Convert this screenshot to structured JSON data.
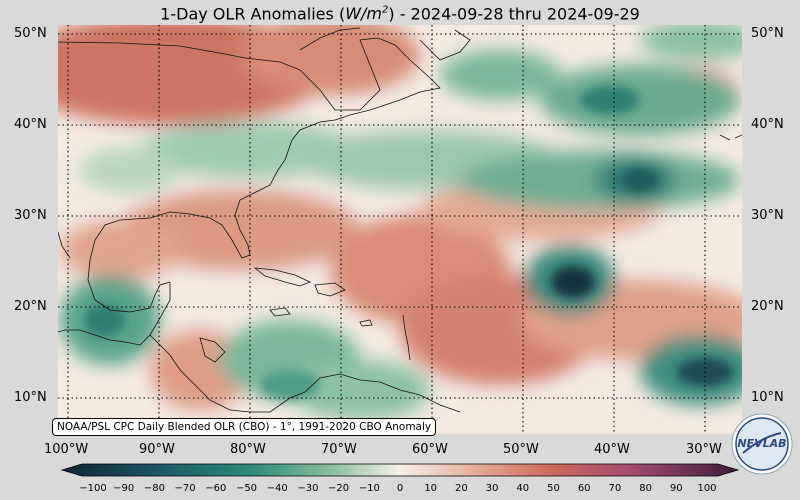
{
  "title": {
    "prefix": "1-Day OLR Anomalies (",
    "unit_main": "W/m",
    "unit_exp": "2",
    "suffix": ") - 2024-09-28 thru 2024-09-29"
  },
  "lat_labels": [
    "50°N",
    "40°N",
    "30°N",
    "20°N",
    "10°N"
  ],
  "lon_labels": [
    "100°W",
    "90°W",
    "80°W",
    "70°W",
    "60°W",
    "50°W",
    "40°W",
    "30°W"
  ],
  "source_note": "NOAA/PSL CPC Daily Blended OLR (CBO) - 1°, 1991-2020 CBO Anomaly",
  "colorbar": {
    "ticks": [
      "−100",
      "−90",
      "−80",
      "−70",
      "−60",
      "−50",
      "−40",
      "−30",
      "−20",
      "−10",
      "0",
      "10",
      "20",
      "30",
      "40",
      "50",
      "60",
      "70",
      "80",
      "90",
      "100"
    ],
    "min": -100,
    "max": 100,
    "colors": {
      "neg_extreme": "#0f2338",
      "neg_strong": "#1d7268",
      "neg_mid": "#5aa98e",
      "neg_weak": "#bcd9c0",
      "neutral": "#f5efe8",
      "pos_weak": "#e3a892",
      "pos_mid": "#cf6b5c",
      "pos_strong": "#a44d6f",
      "pos_extreme": "#3e1c3d"
    }
  },
  "logo_text": "NEVLAB"
}
